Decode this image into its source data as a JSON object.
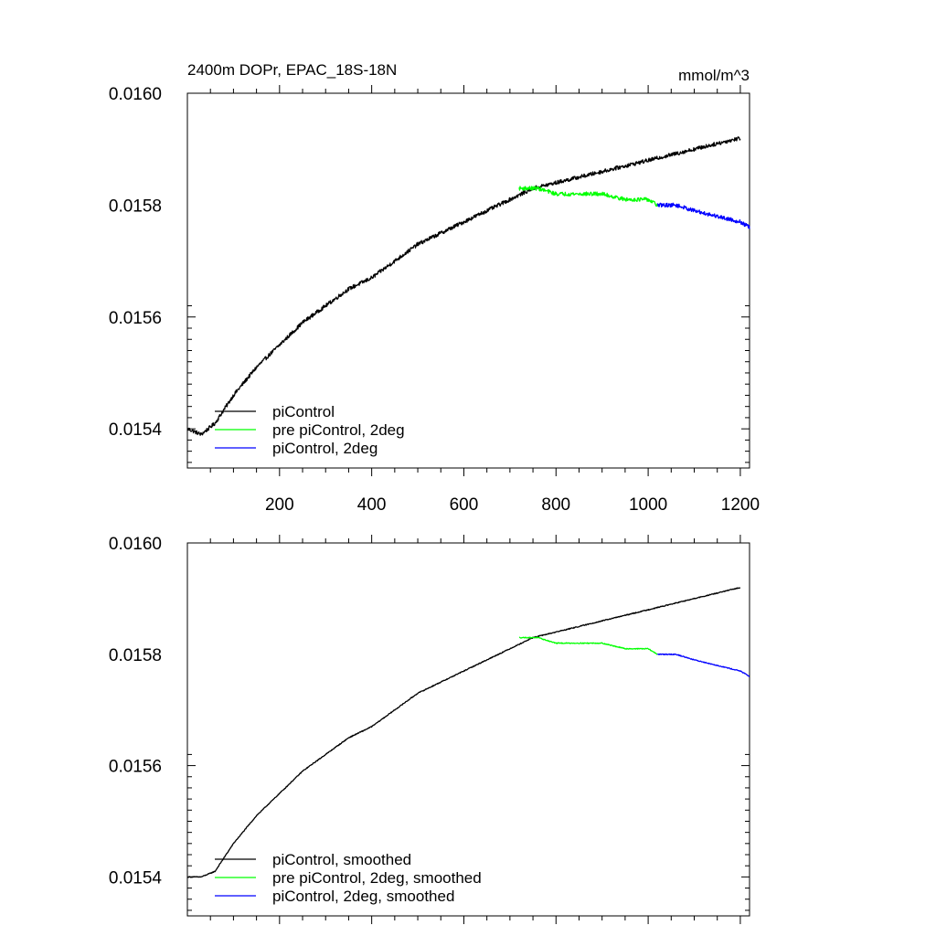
{
  "chart_data": [
    {
      "type": "line",
      "title": "2400m DOPr, EPAC_18S-18N",
      "units": "mmol/m^3",
      "xlabel": "",
      "ylabel": "",
      "xlim": [
        0,
        1220
      ],
      "ylim": [
        0.01533,
        0.016
      ],
      "xticks": [
        200,
        400,
        600,
        800,
        1000,
        1200
      ],
      "xtick_labels": [
        "200",
        "400",
        "600",
        "800",
        "1000",
        "1200"
      ],
      "yticks": [
        0.0154,
        0.0156,
        0.0158,
        0.016
      ],
      "ytick_labels": [
        "0.0154",
        "0.0156",
        "0.0158",
        "0.0160"
      ],
      "show_xtick_labels": true,
      "legend_position": "bottom-left",
      "grid": false,
      "series": [
        {
          "name": "piControl",
          "color": "#000000",
          "noise": 3.5e-06,
          "x": [
            1,
            30,
            60,
            100,
            150,
            200,
            250,
            300,
            350,
            400,
            450,
            500,
            550,
            600,
            650,
            700,
            750,
            800,
            850,
            900,
            950,
            1000,
            1050,
            1100,
            1150,
            1200
          ],
          "y": [
            0.0154,
            0.01539,
            0.01541,
            0.01546,
            0.01551,
            0.01555,
            0.01559,
            0.01562,
            0.01565,
            0.01567,
            0.0157,
            0.01573,
            0.01575,
            0.01577,
            0.01579,
            0.01581,
            0.01583,
            0.01584,
            0.01585,
            0.01586,
            0.01587,
            0.01588,
            0.01589,
            0.0159,
            0.01591,
            0.01592
          ]
        },
        {
          "name": "pre piControl, 2deg",
          "color": "#00ff00",
          "noise": 3.5e-06,
          "x": [
            720,
            760,
            800,
            850,
            900,
            950,
            1000,
            1020
          ],
          "y": [
            0.01583,
            0.01583,
            0.01582,
            0.01582,
            0.01582,
            0.01581,
            0.01581,
            0.0158
          ]
        },
        {
          "name": "piControl, 2deg",
          "color": "#0000ff",
          "noise": 3.5e-06,
          "x": [
            1020,
            1060,
            1100,
            1150,
            1200,
            1220
          ],
          "y": [
            0.0158,
            0.0158,
            0.01579,
            0.01578,
            0.01577,
            0.01576
          ]
        }
      ]
    },
    {
      "type": "line",
      "title": "",
      "units": "",
      "xlabel": "",
      "ylabel": "",
      "xlim": [
        0,
        1220
      ],
      "ylim": [
        0.01533,
        0.016
      ],
      "xticks": [
        200,
        400,
        600,
        800,
        1000,
        1200
      ],
      "xtick_labels": [],
      "yticks": [
        0.0154,
        0.0156,
        0.0158,
        0.016
      ],
      "ytick_labels": [
        "0.0154",
        "0.0156",
        "0.0158",
        "0.0160"
      ],
      "show_xtick_labels": false,
      "legend_position": "bottom-left",
      "grid": false,
      "series": [
        {
          "name": "piControl, smoothed",
          "color": "#000000",
          "noise": 8e-07,
          "x": [
            1,
            30,
            60,
            100,
            150,
            200,
            250,
            300,
            350,
            400,
            450,
            500,
            550,
            600,
            650,
            700,
            750,
            800,
            850,
            900,
            950,
            1000,
            1050,
            1100,
            1150,
            1200
          ],
          "y": [
            0.0154,
            0.0154,
            0.01541,
            0.01546,
            0.01551,
            0.01555,
            0.01559,
            0.01562,
            0.01565,
            0.01567,
            0.0157,
            0.01573,
            0.01575,
            0.01577,
            0.01579,
            0.01581,
            0.01583,
            0.01584,
            0.01585,
            0.01586,
            0.01587,
            0.01588,
            0.01589,
            0.0159,
            0.01591,
            0.01592
          ]
        },
        {
          "name": "pre piControl, 2deg, smoothed",
          "color": "#00ff00",
          "noise": 8e-07,
          "x": [
            720,
            760,
            800,
            850,
            900,
            950,
            1000,
            1020
          ],
          "y": [
            0.01583,
            0.01583,
            0.01582,
            0.01582,
            0.01582,
            0.01581,
            0.01581,
            0.0158
          ]
        },
        {
          "name": "piControl, 2deg, smoothed",
          "color": "#0000ff",
          "noise": 8e-07,
          "x": [
            1020,
            1060,
            1100,
            1150,
            1200,
            1220
          ],
          "y": [
            0.0158,
            0.0158,
            0.01579,
            0.01578,
            0.01577,
            0.01576
          ]
        }
      ]
    }
  ]
}
